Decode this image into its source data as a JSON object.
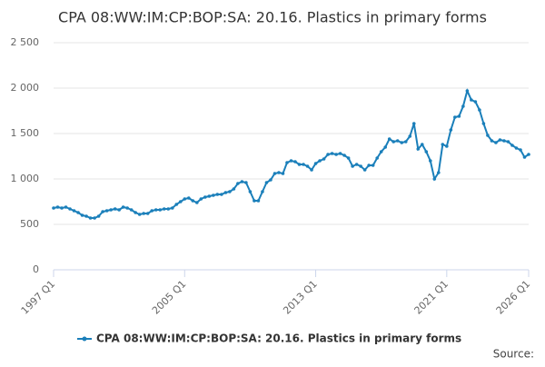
{
  "chart_data": {
    "type": "line",
    "title": "CPA 08:WW:IM:CP:BOP:SA: 20.16. Plastics in primary forms",
    "source": "Source:",
    "categories": [
      "1997 Q1",
      null,
      null,
      null,
      null,
      null,
      null,
      null,
      null,
      null,
      null,
      null,
      null,
      null,
      null,
      null,
      null,
      null,
      null,
      null,
      null,
      null,
      null,
      null,
      null,
      null,
      null,
      null,
      null,
      null,
      null,
      null,
      "2005 Q1",
      null,
      null,
      null,
      null,
      null,
      null,
      null,
      null,
      null,
      null,
      null,
      null,
      null,
      null,
      null,
      null,
      null,
      null,
      null,
      null,
      null,
      null,
      null,
      null,
      null,
      null,
      null,
      null,
      null,
      null,
      null,
      "2013 Q1",
      null,
      null,
      null,
      null,
      null,
      null,
      null,
      null,
      null,
      null,
      null,
      null,
      null,
      null,
      null,
      null,
      null,
      null,
      null,
      null,
      null,
      null,
      null,
      null,
      null,
      null,
      null,
      null,
      null,
      null,
      null,
      "2021 Q1",
      null,
      null,
      null,
      null,
      null,
      null,
      null,
      null,
      null,
      null,
      null,
      null,
      null,
      null,
      null,
      null,
      null,
      null,
      null,
      "2026 Q1"
    ],
    "series": [
      {
        "name": "CPA 08:WW:IM:CP:BOP:SA: 20.16. Plastics in primary forms",
        "color": "#1a7fba",
        "values": [
          680,
          690,
          680,
          690,
          670,
          650,
          630,
          600,
          590,
          570,
          570,
          590,
          640,
          650,
          660,
          670,
          660,
          690,
          680,
          660,
          630,
          610,
          620,
          620,
          650,
          660,
          660,
          670,
          670,
          680,
          720,
          750,
          780,
          790,
          760,
          740,
          780,
          800,
          810,
          820,
          830,
          830,
          850,
          860,
          890,
          950,
          970,
          960,
          860,
          760,
          760,
          860,
          960,
          990,
          1060,
          1070,
          1060,
          1180,
          1200,
          1190,
          1160,
          1160,
          1140,
          1100,
          1170,
          1200,
          1220,
          1270,
          1280,
          1270,
          1280,
          1260,
          1230,
          1140,
          1160,
          1140,
          1100,
          1150,
          1150,
          1230,
          1300,
          1350,
          1440,
          1410,
          1420,
          1400,
          1410,
          1470,
          1610,
          1330,
          1380,
          1300,
          1200,
          1000,
          1070,
          1380,
          1360,
          1540,
          1680,
          1690,
          1800,
          1970,
          1870,
          1850,
          1760,
          1610,
          1480,
          1420,
          1400,
          1430,
          1420,
          1410,
          1370,
          1340,
          1320,
          1240,
          1270
        ]
      }
    ],
    "ylim": [
      0,
      2500
    ],
    "yticks": [
      0,
      500,
      {
        "value": 1000,
        "label": "1 000"
      },
      {
        "value": 1500,
        "label": "1 500"
      },
      {
        "value": 2000,
        "label": "2 000"
      },
      {
        "value": 2500,
        "label": "2 500"
      }
    ],
    "grid": true,
    "legend": "bottom"
  }
}
